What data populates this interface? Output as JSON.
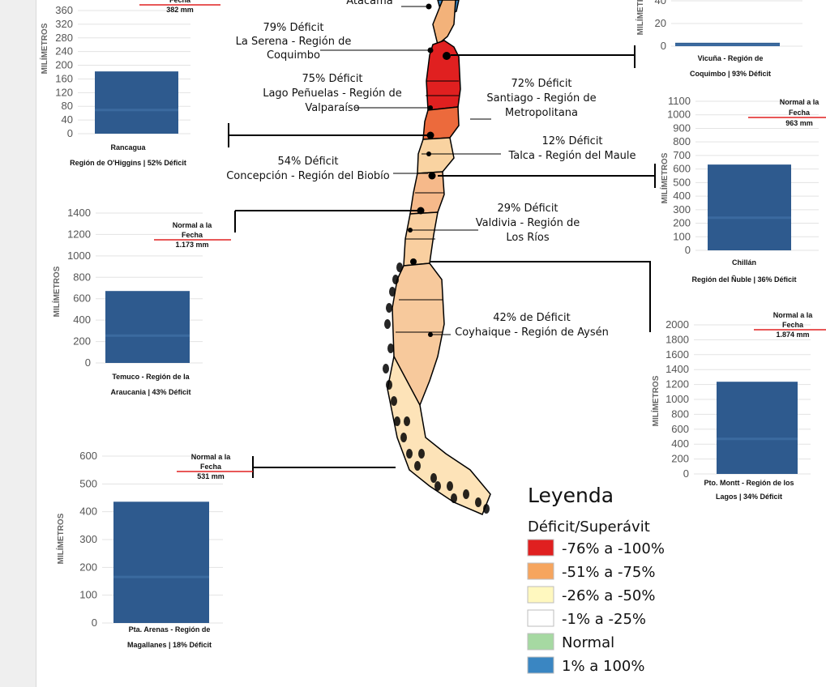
{
  "colors": {
    "bar": "#2e5a8e",
    "normal_line": "#e02020",
    "leader": "#000000",
    "grid": "#e3e3e3"
  },
  "legend": {
    "title": "Leyenda",
    "subtitle": "Déficit/Superávit",
    "items": [
      {
        "label": "-76%  a -100%",
        "color": "#e02020"
      },
      {
        "label": "-51% a -75%",
        "color": "#f6a55e"
      },
      {
        "label": "-26% a -50%",
        "color": "#fff8bf"
      },
      {
        "label": "-1% a -25%",
        "color": "#ffffff"
      },
      {
        "label": "Normal",
        "color": "#a6d9a2"
      },
      {
        "label": "1% a 100%",
        "color": "#3a86c2"
      }
    ]
  },
  "annotations": [
    {
      "id": "atacama",
      "lines": [
        "Atacama"
      ]
    },
    {
      "id": "la-serena",
      "lines": [
        "79% Déficit",
        "La Serena - Región de",
        "Coquimbo"
      ]
    },
    {
      "id": "lago-penuelas",
      "lines": [
        "75% Déficit",
        "Lago Peñuelas - Región de",
        "Valparaíso"
      ]
    },
    {
      "id": "santiago",
      "lines": [
        "72% Déficit",
        "Santiago - Región de",
        "Metropolitana"
      ]
    },
    {
      "id": "talca",
      "lines": [
        "12% Déficit",
        "Talca - Región del Maule"
      ]
    },
    {
      "id": "concepcion",
      "lines": [
        "54% Déficit",
        "Concepción - Región del Biobío"
      ]
    },
    {
      "id": "valdivia",
      "lines": [
        "29% Déficit",
        "Valdivia - Región de",
        "Los Ríos"
      ]
    },
    {
      "id": "coyhaique",
      "lines": [
        "42% de Déficit",
        "Coyhaique - Región de Aysén"
      ]
    }
  ],
  "chart_data": [
    {
      "id": "rancagua",
      "type": "bar",
      "ylabel": "MILÍMETROS",
      "ticks": [
        0,
        40,
        80,
        120,
        160,
        200,
        240,
        280,
        320,
        360
      ],
      "ylim": [
        0,
        360
      ],
      "values": [
        182
      ],
      "normal_label": [
        "Fecha",
        "382 mm"
      ],
      "normal_value": 382,
      "caption": [
        "Rancagua",
        "Región de O'Higgins  |  52% Déficit"
      ]
    },
    {
      "id": "vicuna",
      "type": "bar",
      "ylabel": "MILÍMETROS",
      "ticks": [
        0,
        20,
        40
      ],
      "ylim": [
        0,
        40
      ],
      "values": [
        3
      ],
      "normal_label": [],
      "normal_value": null,
      "caption": [
        "Vicuña - Región de",
        "Coquimbo |  93% Déficit"
      ]
    },
    {
      "id": "chillan",
      "type": "bar",
      "ylabel": "MILÍMETROS",
      "ticks": [
        0,
        100,
        200,
        300,
        400,
        500,
        600,
        700,
        800,
        900,
        1000,
        1100
      ],
      "ylim": [
        0,
        1100
      ],
      "values": [
        633
      ],
      "normal_label": [
        "Normal a la",
        "Fecha",
        "963 mm"
      ],
      "normal_value": 963,
      "caption": [
        "Chillán",
        "Región del Ñuble  |  36% Déficit"
      ]
    },
    {
      "id": "temuco",
      "type": "bar",
      "ylabel": "MILÍMETROS",
      "ticks": [
        0,
        200,
        400,
        600,
        800,
        1000,
        1200,
        1400
      ],
      "ylim": [
        0,
        1400
      ],
      "values": [
        672
      ],
      "normal_label": [
        "Normal a la",
        "Fecha",
        "1.173 mm"
      ],
      "normal_value": 1173,
      "caption": [
        "Temuco - Región de la",
        "Araucania |  43% Déficit"
      ]
    },
    {
      "id": "pto-montt",
      "type": "bar",
      "ylabel": "MILÍMETROS",
      "ticks": [
        0,
        200,
        400,
        600,
        800,
        1000,
        1200,
        1400,
        1600,
        1800,
        2000
      ],
      "ylim": [
        0,
        2000
      ],
      "values": [
        1237
      ],
      "normal_label": [
        "Normal a la",
        "Fecha",
        "1.874 mm"
      ],
      "normal_value": 1874,
      "caption": [
        "Pto. Montt - Región de los",
        "Lagos |  34% Déficit"
      ]
    },
    {
      "id": "pta-arenas",
      "type": "bar",
      "ylabel": "MILÍMETROS",
      "ticks": [
        0,
        100,
        200,
        300,
        400,
        500,
        600
      ],
      "ylim": [
        0,
        600
      ],
      "values": [
        436
      ],
      "normal_label": [
        "Normal a la",
        "Fecha",
        "531 mm"
      ],
      "normal_value": 531,
      "caption": [
        "Pta. Arenas - Región de",
        "Magallanes |  18% Déficit"
      ]
    }
  ]
}
